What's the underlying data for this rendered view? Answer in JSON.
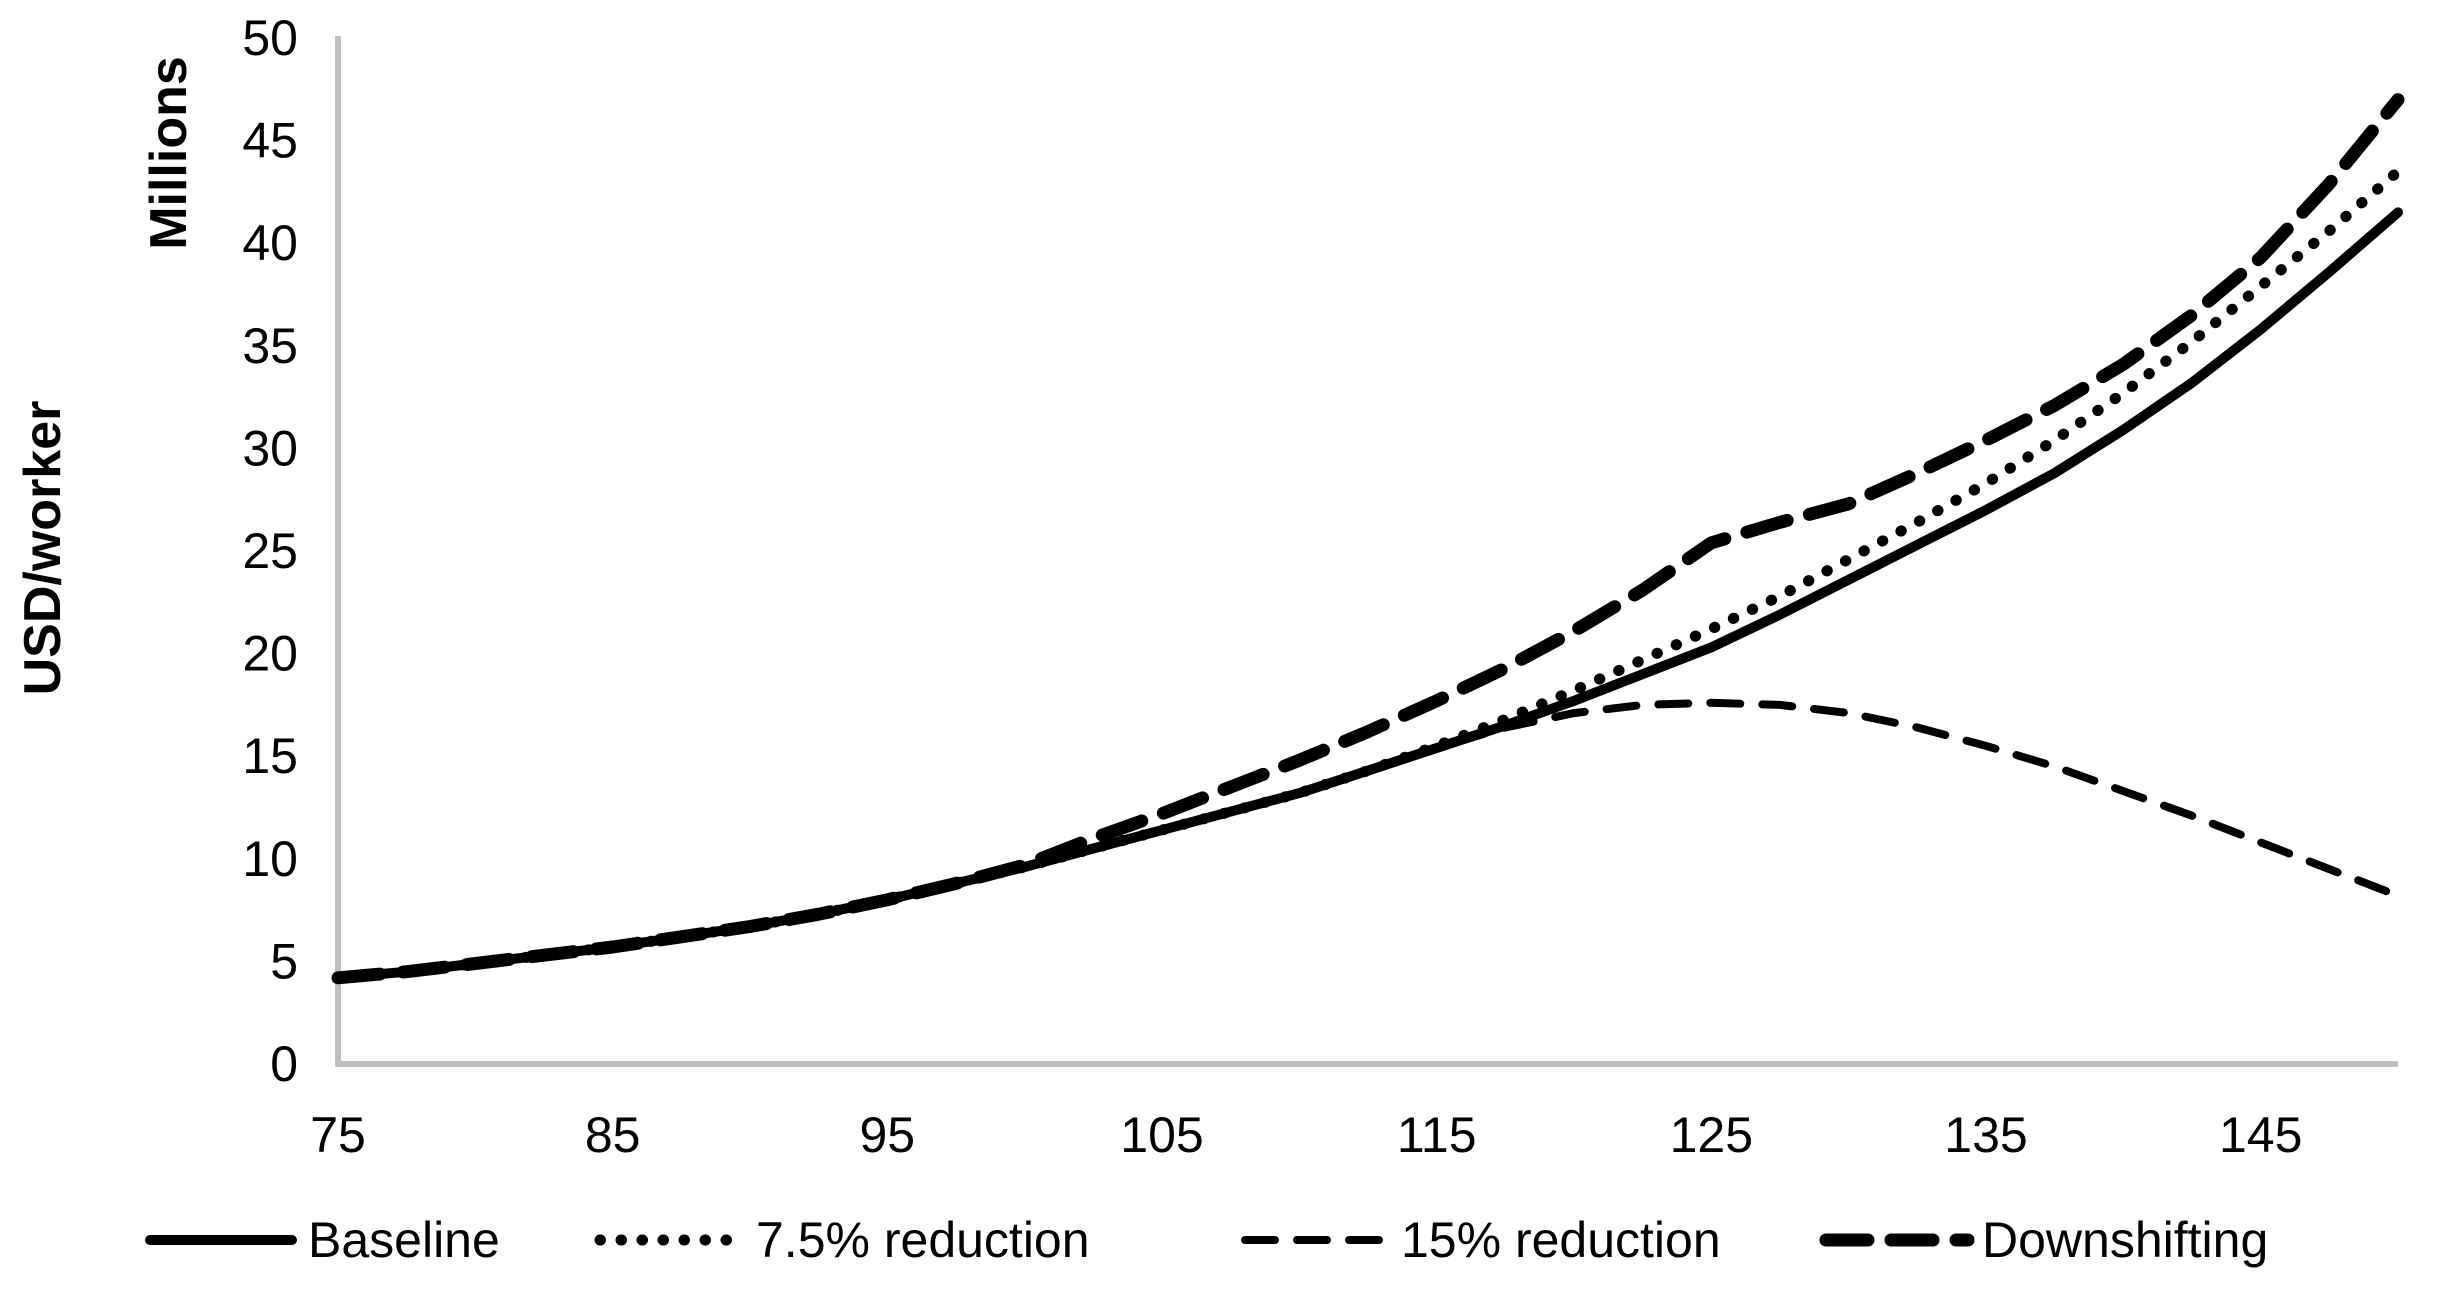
{
  "figure": {
    "background": "#ffffff",
    "text_color": "#000000",
    "axis_color": "#bfbfbf",
    "series_color": "#000000"
  },
  "axes": {
    "unit_label": "Millions",
    "y_title": "USD/worker",
    "y_ticks": [
      0,
      5,
      10,
      15,
      20,
      25,
      30,
      35,
      40,
      45,
      50
    ],
    "x_ticks": [
      75,
      85,
      95,
      105,
      115,
      125,
      135,
      145
    ]
  },
  "chart_data": {
    "type": "line",
    "title": "",
    "xlabel": "",
    "ylabel": "USD/worker",
    "y_display_units": "Millions",
    "xlim": [
      75,
      150
    ],
    "ylim": [
      0,
      50
    ],
    "grid": false,
    "legend_position": "bottom",
    "x": [
      75,
      77.5,
      80,
      82.5,
      85,
      87.5,
      90,
      92.5,
      95,
      97.5,
      100,
      102.5,
      105,
      107.5,
      110,
      112.5,
      115,
      117.5,
      120,
      122.5,
      125,
      127.5,
      130,
      132.5,
      135,
      137.5,
      140,
      142.5,
      145,
      147.5,
      150
    ],
    "series": [
      {
        "name": "Baseline",
        "line_style": "solid",
        "color": "#000000",
        "values": [
          4.2,
          4.5,
          4.9,
          5.3,
          5.7,
          6.2,
          6.7,
          7.3,
          8.0,
          8.8,
          9.6,
          10.5,
          11.4,
          12.3,
          13.2,
          14.3,
          15.4,
          16.5,
          17.7,
          19.0,
          20.3,
          21.9,
          23.6,
          25.3,
          27.0,
          28.8,
          30.9,
          33.2,
          35.8,
          38.6,
          41.5
        ]
      },
      {
        "name": "7.5% reduction",
        "line_style": "dotted",
        "color": "#000000",
        "values": [
          4.2,
          4.5,
          4.9,
          5.3,
          5.7,
          6.2,
          6.7,
          7.3,
          8.0,
          8.8,
          9.6,
          10.5,
          11.4,
          12.3,
          13.2,
          14.3,
          15.5,
          16.8,
          18.2,
          19.7,
          21.2,
          22.8,
          24.6,
          26.4,
          28.3,
          30.4,
          32.7,
          35.2,
          37.9,
          40.6,
          43.5
        ]
      },
      {
        "name": "15% reduction",
        "line_style": "dashed",
        "color": "#000000",
        "values": [
          4.2,
          4.5,
          4.9,
          5.3,
          5.7,
          6.2,
          6.7,
          7.3,
          8.0,
          8.8,
          9.6,
          10.5,
          11.4,
          12.3,
          13.2,
          14.3,
          15.4,
          16.4,
          17.1,
          17.5,
          17.6,
          17.5,
          17.1,
          16.4,
          15.5,
          14.5,
          13.3,
          12.1,
          10.8,
          9.5,
          8.2
        ]
      },
      {
        "name": "Downshifting",
        "line_style": "dashed-heavy",
        "color": "#000000",
        "values": [
          4.2,
          4.5,
          4.9,
          5.3,
          5.7,
          6.2,
          6.7,
          7.3,
          8.0,
          8.8,
          9.7,
          11.0,
          12.2,
          13.5,
          14.8,
          16.2,
          17.7,
          19.3,
          21.1,
          23.1,
          25.4,
          26.4,
          27.3,
          28.8,
          30.4,
          32.1,
          34.1,
          36.5,
          39.3,
          42.9,
          47.0
        ]
      }
    ]
  },
  "legend": {
    "items": [
      {
        "label": "Baseline",
        "line_style": "solid"
      },
      {
        "label": "7.5% reduction",
        "line_style": "dotted"
      },
      {
        "label": "15% reduction",
        "line_style": "dashed"
      },
      {
        "label": "Downshifting",
        "line_style": "dashed-heavy"
      }
    ]
  }
}
